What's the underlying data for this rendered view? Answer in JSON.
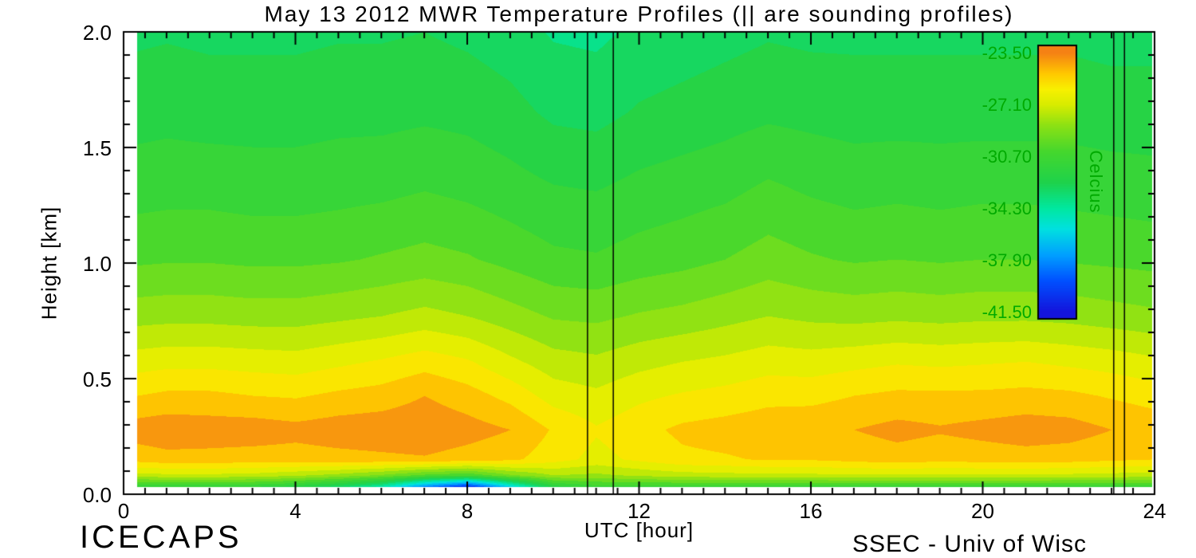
{
  "footer": {
    "left": "ICECAPS",
    "right": "SSEC - Univ of Wisc"
  },
  "chart_data": {
    "type": "heatmap",
    "title": "May 13 2012 MWR Temperature Profiles (|| are sounding profiles)",
    "xlabel": "UTC [hour]",
    "ylabel": "Height [km]",
    "xlim": [
      0,
      24
    ],
    "ylim": [
      0,
      2
    ],
    "xticks": [
      0,
      4,
      8,
      12,
      16,
      20,
      24
    ],
    "xtick_labels": [
      "0",
      "4",
      "8",
      "12",
      "16",
      "20",
      "24"
    ],
    "yticks": [
      0,
      0.5,
      1,
      1.5,
      2
    ],
    "ytick_labels": [
      "0.0",
      "0.5",
      "1.0",
      "1.5",
      "2.0"
    ],
    "x_minor_interval": 0.5,
    "y_minor_interval": 0.1,
    "contour_interval_c": 0.9,
    "sounding_times_utc": [
      10.8,
      11.4,
      23.05,
      23.3
    ],
    "colorbar": {
      "title": "Celcius",
      "ticks": [
        -23.5,
        -27.1,
        -30.7,
        -34.3,
        -37.9,
        -41.5
      ],
      "tick_labels": [
        "-23.50",
        "-27.10",
        "-30.70",
        "-34.30",
        "-37.90",
        "-41.50"
      ],
      "label_color": "#00aa00",
      "value_range": [
        -41.5,
        -23.5
      ]
    },
    "colormap": [
      {
        "t": 0.0,
        "c": "#1414dc"
      },
      {
        "t": 0.12,
        "c": "#0050ff"
      },
      {
        "t": 0.22,
        "c": "#00a0ff"
      },
      {
        "t": 0.32,
        "c": "#00e0e0"
      },
      {
        "t": 0.4,
        "c": "#00e8a0"
      },
      {
        "t": 0.5,
        "c": "#1ed24b"
      },
      {
        "t": 0.62,
        "c": "#46d72d"
      },
      {
        "t": 0.72,
        "c": "#8ce114"
      },
      {
        "t": 0.8,
        "c": "#d8ec00"
      },
      {
        "t": 0.86,
        "c": "#f8f000"
      },
      {
        "t": 0.92,
        "c": "#ffc800"
      },
      {
        "t": 1.0,
        "c": "#f58114"
      }
    ],
    "grid": {
      "times": [
        0,
        1,
        2,
        3,
        4,
        5,
        6,
        7,
        8,
        9,
        10,
        11,
        12,
        13,
        14,
        15,
        16,
        17,
        18,
        19,
        20,
        21,
        22,
        23,
        24
      ],
      "heights": [
        0.0,
        0.05,
        0.12,
        0.25,
        0.4,
        0.55,
        0.75,
        1.0,
        1.3,
        1.65,
        2.0
      ],
      "values": [
        [
          -31.5,
          -31.5,
          -31.5,
          -31.5,
          -32.0,
          -33.0,
          -34.5,
          -38.0,
          -40.5,
          -36.0,
          -32.0,
          -31.0,
          -31.0,
          -31.0,
          -31.0,
          -31.0,
          -31.0,
          -31.0,
          -31.0,
          -31.0,
          -31.0,
          -31.0,
          -31.0,
          -31.0,
          -31.0
        ],
        [
          -27.5,
          -27.3,
          -27.3,
          -27.4,
          -27.8,
          -28.3,
          -29.0,
          -30.0,
          -30.5,
          -29.0,
          -28.0,
          -28.2,
          -27.8,
          -27.5,
          -27.4,
          -27.3,
          -27.3,
          -27.2,
          -27.2,
          -27.2,
          -27.2,
          -27.2,
          -27.3,
          -27.4,
          -27.5
        ],
        [
          -25.0,
          -24.7,
          -24.7,
          -24.8,
          -24.8,
          -24.7,
          -24.6,
          -24.5,
          -24.8,
          -25.1,
          -25.8,
          -26.5,
          -26.0,
          -25.5,
          -25.4,
          -25.2,
          -25.2,
          -25.0,
          -24.8,
          -25.0,
          -24.9,
          -24.8,
          -24.9,
          -25.1,
          -25.3
        ],
        [
          -24.0,
          -23.8,
          -23.9,
          -23.9,
          -24.1,
          -23.9,
          -23.8,
          -23.7,
          -24.0,
          -24.4,
          -25.4,
          -26.1,
          -25.6,
          -25.1,
          -24.9,
          -24.7,
          -24.6,
          -24.4,
          -24.1,
          -24.3,
          -24.1,
          -23.9,
          -24.0,
          -24.4,
          -24.7
        ],
        [
          -25.4,
          -25.1,
          -25.1,
          -25.3,
          -25.4,
          -25.1,
          -24.9,
          -24.4,
          -24.9,
          -25.6,
          -26.6,
          -26.9,
          -26.4,
          -26.1,
          -25.9,
          -25.6,
          -25.6,
          -25.3,
          -25.1,
          -25.1,
          -25.1,
          -25.0,
          -25.1,
          -25.4,
          -25.7
        ],
        [
          -26.7,
          -26.5,
          -26.5,
          -26.6,
          -26.7,
          -26.4,
          -26.1,
          -25.7,
          -26.1,
          -26.9,
          -27.6,
          -27.8,
          -27.4,
          -27.1,
          -26.9,
          -26.6,
          -26.7,
          -26.5,
          -26.3,
          -26.4,
          -26.3,
          -26.2,
          -26.4,
          -26.6,
          -26.9
        ],
        [
          -28.4,
          -28.3,
          -28.3,
          -28.4,
          -28.4,
          -28.2,
          -28.0,
          -27.7,
          -28.0,
          -28.5,
          -29.0,
          -29.1,
          -28.8,
          -28.6,
          -28.3,
          -28.0,
          -28.2,
          -28.3,
          -28.2,
          -28.3,
          -28.2,
          -28.2,
          -28.3,
          -28.5,
          -28.7
        ],
        [
          -30.0,
          -29.9,
          -29.9,
          -30.0,
          -30.0,
          -29.9,
          -29.7,
          -29.5,
          -29.7,
          -30.1,
          -30.5,
          -30.6,
          -30.3,
          -30.1,
          -29.8,
          -29.4,
          -29.7,
          -29.9,
          -29.8,
          -29.9,
          -29.8,
          -29.8,
          -29.9,
          -30.0,
          -30.1
        ],
        [
          -31.1,
          -31.0,
          -31.0,
          -31.1,
          -31.1,
          -31.0,
          -30.9,
          -30.7,
          -30.9,
          -31.2,
          -31.5,
          -31.6,
          -31.3,
          -31.1,
          -30.9,
          -30.5,
          -30.8,
          -31.0,
          -30.9,
          -31.0,
          -30.9,
          -30.9,
          -31.0,
          -31.1,
          -31.2
        ],
        [
          -32.0,
          -31.9,
          -32.0,
          -32.0,
          -32.0,
          -31.9,
          -31.9,
          -31.8,
          -31.9,
          -32.2,
          -32.7,
          -32.8,
          -32.4,
          -32.2,
          -32.0,
          -31.8,
          -31.9,
          -32.0,
          -32.0,
          -32.0,
          -32.0,
          -32.0,
          -32.0,
          -32.1,
          -32.1
        ],
        [
          -32.7,
          -32.6,
          -32.7,
          -32.7,
          -32.7,
          -32.6,
          -32.6,
          -32.5,
          -32.7,
          -33.0,
          -33.5,
          -33.6,
          -33.2,
          -33.0,
          -32.8,
          -32.6,
          -32.7,
          -32.7,
          -32.7,
          -32.7,
          -32.7,
          -32.7,
          -32.7,
          -32.8,
          -32.8
        ]
      ]
    }
  }
}
